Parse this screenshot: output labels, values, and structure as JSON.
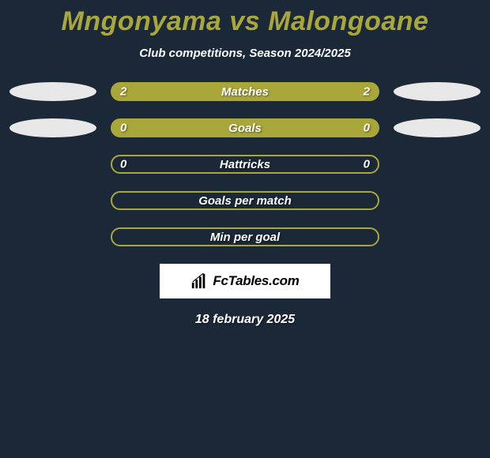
{
  "header": {
    "player1": "Mngonyama",
    "vs": "vs",
    "player2": "Malongoane",
    "subtitle": "Club competitions, Season 2024/2025"
  },
  "colors": {
    "title": "#a9a73a",
    "bar_fill": "#a9a73a",
    "bar_outline": "#a9a73a",
    "background": "#1a2838",
    "ellipse": "#e8e8e8",
    "text": "#ffffff"
  },
  "rows": [
    {
      "left": "2",
      "label": "Matches",
      "right": "2",
      "style": "filled",
      "show_ellipses": true
    },
    {
      "left": "0",
      "label": "Goals",
      "right": "0",
      "style": "filled",
      "show_ellipses": true
    },
    {
      "left": "0",
      "label": "Hattricks",
      "right": "0",
      "style": "outline",
      "show_ellipses": false
    },
    {
      "left": "",
      "label": "Goals per match",
      "right": "",
      "style": "outline",
      "show_ellipses": false
    },
    {
      "left": "",
      "label": "Min per goal",
      "right": "",
      "style": "outline",
      "show_ellipses": false
    }
  ],
  "branding": {
    "site": "FcTables.com",
    "icon": "chart-icon"
  },
  "date": "18 february 2025"
}
